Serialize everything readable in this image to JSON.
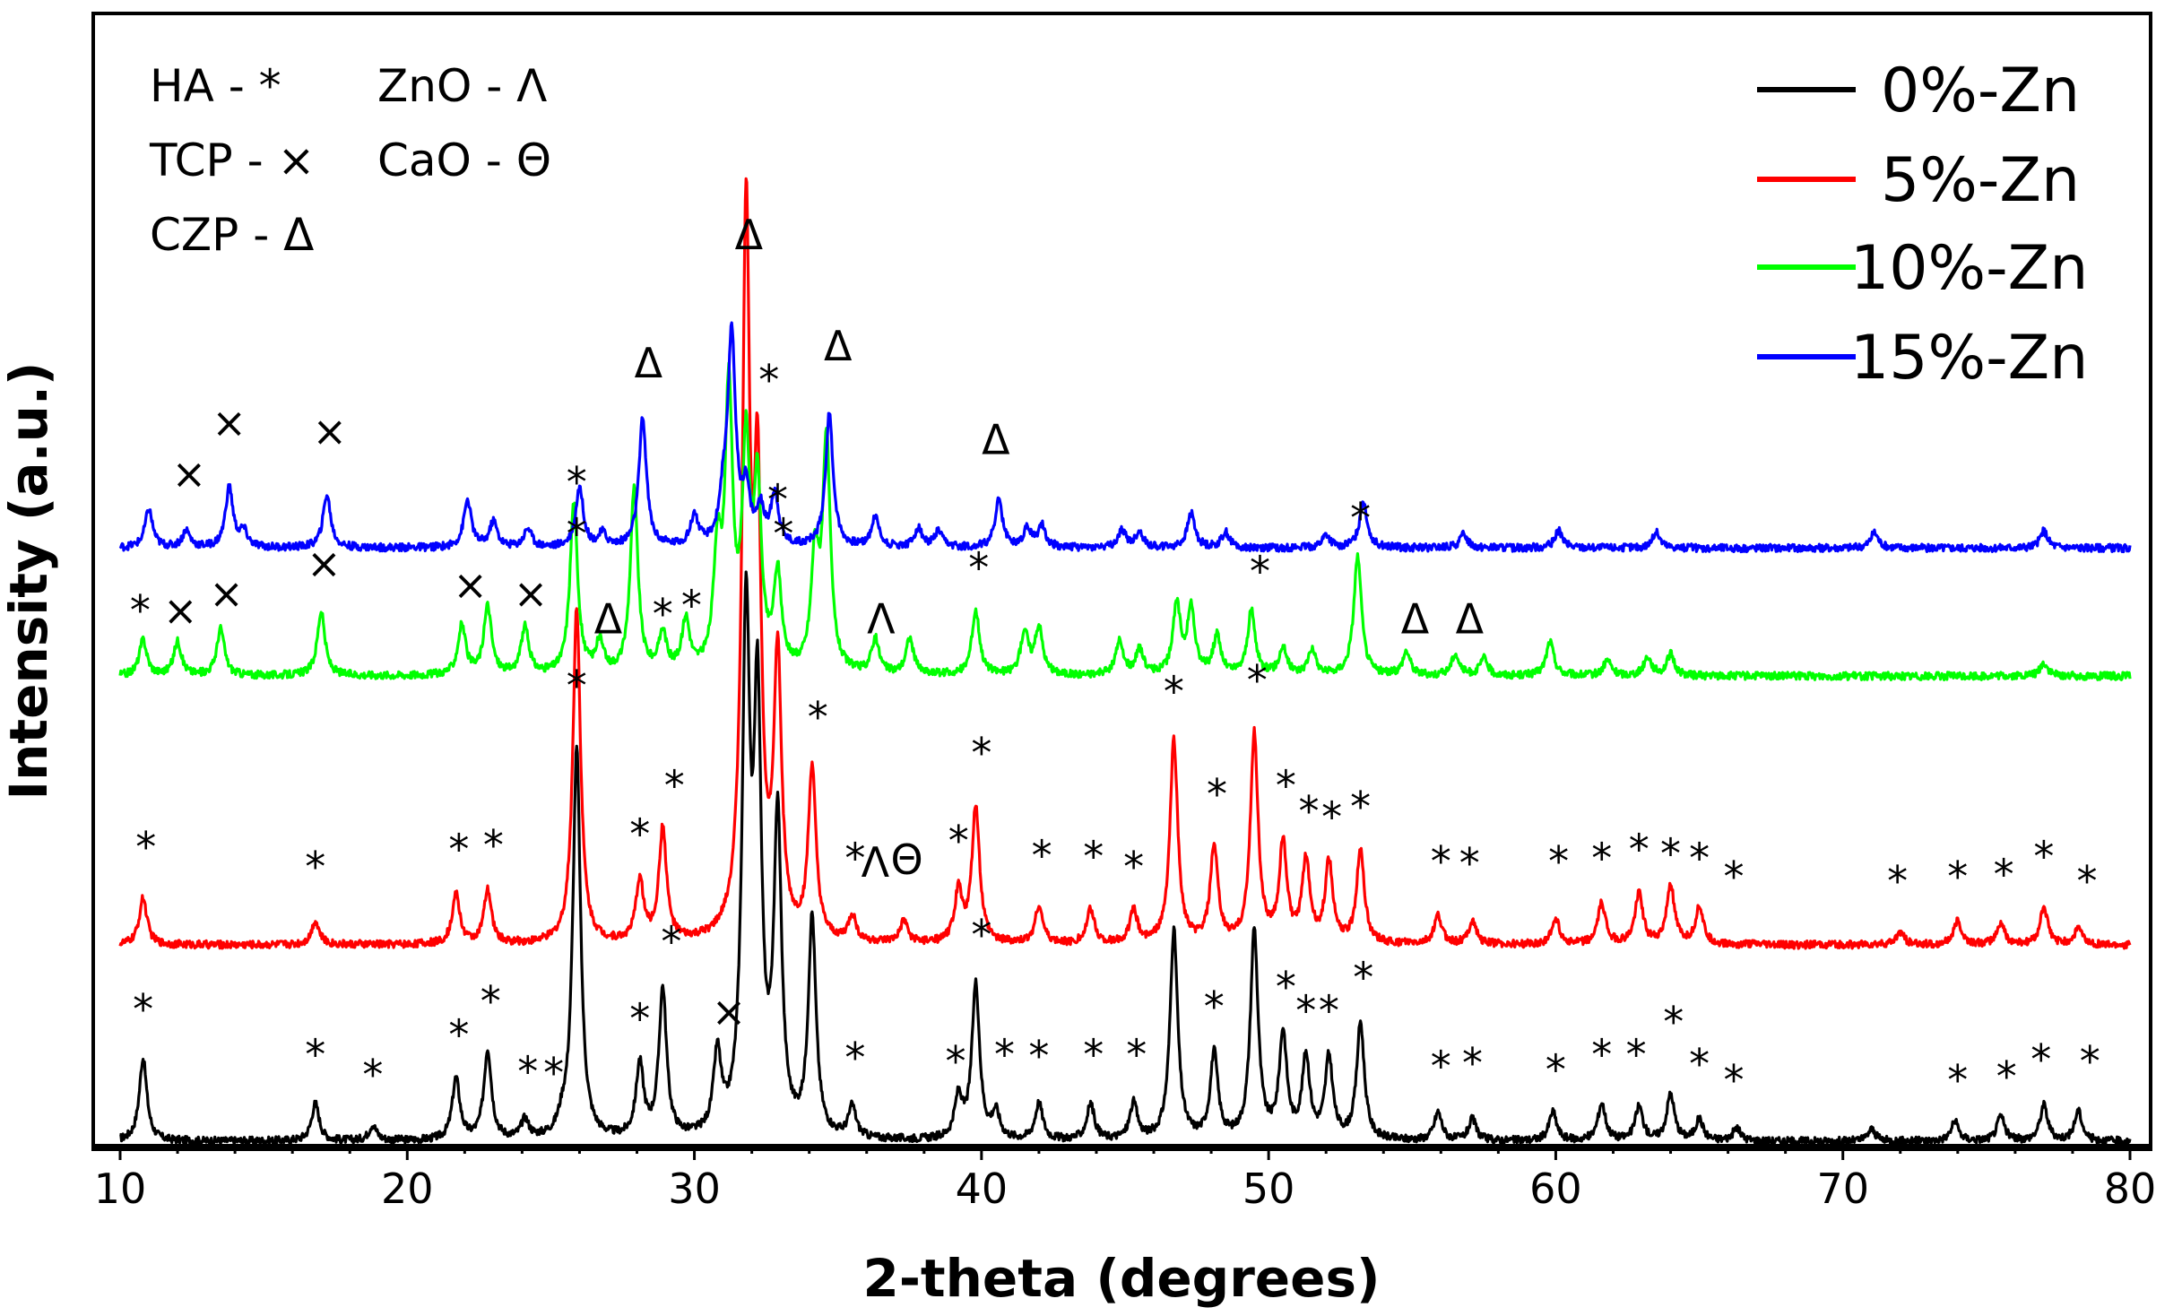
{
  "chart_data": {
    "type": "line",
    "title": "",
    "xlabel": "2-theta (degrees)",
    "ylabel": "Intensity (a.u.)",
    "xlim": [
      10,
      80
    ],
    "ylim": [
      0,
      1300
    ],
    "x_ticks": [
      10,
      20,
      30,
      40,
      50,
      60,
      70,
      80
    ],
    "grid": false,
    "legend_position": "top-right",
    "phase_key": [
      {
        "text": "HA - *"
      },
      {
        "text": "TCP - ×"
      },
      {
        "text": "CZP - Δ"
      },
      {
        "text": "ZnO - Λ"
      },
      {
        "text": "CaO - Θ"
      }
    ],
    "series": [
      {
        "name": "0%-Zn",
        "color": "#000000",
        "baseline": 5,
        "peaks": [
          [
            10.8,
            97
          ],
          [
            16.8,
            44
          ],
          [
            18.8,
            18
          ],
          [
            21.7,
            72
          ],
          [
            22.8,
            105
          ],
          [
            24.1,
            22
          ],
          [
            25.4,
            15
          ],
          [
            25.9,
            458
          ],
          [
            28.1,
            85
          ],
          [
            28.9,
            174
          ],
          [
            30.8,
            92
          ],
          [
            31.8,
            590
          ],
          [
            32.2,
            480
          ],
          [
            32.9,
            365
          ],
          [
            34.1,
            255
          ],
          [
            35.5,
            36
          ],
          [
            39.2,
            48
          ],
          [
            39.8,
            181
          ],
          [
            40.5,
            30
          ],
          [
            42.0,
            43
          ],
          [
            43.8,
            42
          ],
          [
            45.3,
            42
          ],
          [
            46.7,
            245
          ],
          [
            48.1,
            100
          ],
          [
            49.5,
            245
          ],
          [
            50.5,
            122
          ],
          [
            51.3,
            95
          ],
          [
            52.1,
            95
          ],
          [
            53.2,
            137
          ],
          [
            55.9,
            33
          ],
          [
            57.1,
            25
          ],
          [
            59.9,
            34
          ],
          [
            61.6,
            44
          ],
          [
            62.9,
            40
          ],
          [
            64.0,
            55
          ],
          [
            65.0,
            25
          ],
          [
            66.3,
            15
          ],
          [
            71.0,
            14
          ],
          [
            73.9,
            23
          ],
          [
            75.5,
            29
          ],
          [
            77.0,
            42
          ],
          [
            78.2,
            35
          ]
        ],
        "markers": [
          [
            "*",
            10.8,
            143
          ],
          [
            "*",
            16.8,
            90
          ],
          [
            "*",
            18.8,
            66
          ],
          [
            "*",
            21.8,
            113
          ],
          [
            "*",
            22.9,
            152
          ],
          [
            "*",
            24.2,
            70
          ],
          [
            "*",
            25.1,
            68
          ],
          [
            "*",
            25.9,
            522
          ],
          [
            "*",
            28.1,
            132
          ],
          [
            "*",
            29.2,
            222
          ],
          [
            "×",
            31.2,
            140
          ],
          [
            "*",
            35.6,
            86
          ],
          [
            "*",
            39.1,
            82
          ],
          [
            "*",
            40.0,
            230
          ],
          [
            "*",
            40.8,
            90
          ],
          [
            "*",
            42.0,
            88
          ],
          [
            "*",
            43.9,
            90
          ],
          [
            "*",
            45.4,
            90
          ],
          [
            "*",
            48.1,
            146
          ],
          [
            "*",
            50.6,
            169
          ],
          [
            "*",
            51.3,
            141
          ],
          [
            "*",
            52.1,
            141
          ],
          [
            "*",
            53.3,
            180
          ],
          [
            "*",
            56.0,
            76
          ],
          [
            "*",
            57.1,
            80
          ],
          [
            "*",
            60.0,
            72
          ],
          [
            "*",
            61.6,
            90
          ],
          [
            "*",
            62.8,
            90
          ],
          [
            "*",
            64.1,
            128
          ],
          [
            "*",
            65.0,
            79
          ],
          [
            "*",
            66.2,
            60
          ],
          [
            "*",
            74.0,
            60
          ],
          [
            "*",
            75.7,
            64
          ],
          [
            "*",
            76.9,
            84
          ],
          [
            "*",
            78.6,
            82
          ]
        ]
      },
      {
        "name": "5%-Zn",
        "color": "#ff0000",
        "baseline": 235,
        "peaks": [
          [
            10.8,
            55
          ],
          [
            16.8,
            28
          ],
          [
            21.7,
            58
          ],
          [
            22.8,
            62
          ],
          [
            25.9,
            395
          ],
          [
            28.1,
            72
          ],
          [
            28.9,
            132
          ],
          [
            31.8,
            825
          ],
          [
            32.2,
            490
          ],
          [
            32.9,
            320
          ],
          [
            34.1,
            200
          ],
          [
            35.5,
            30
          ],
          [
            37.3,
            25
          ],
          [
            39.2,
            60
          ],
          [
            39.8,
            159
          ],
          [
            42.0,
            45
          ],
          [
            43.8,
            40
          ],
          [
            45.3,
            38
          ],
          [
            46.7,
            238
          ],
          [
            48.1,
            112
          ],
          [
            49.5,
            245
          ],
          [
            50.5,
            115
          ],
          [
            51.3,
            95
          ],
          [
            52.1,
            94
          ],
          [
            53.2,
            110
          ],
          [
            55.9,
            33
          ],
          [
            57.1,
            28
          ],
          [
            60.0,
            30
          ],
          [
            61.6,
            48
          ],
          [
            62.9,
            60
          ],
          [
            64.0,
            70
          ],
          [
            65.0,
            45
          ],
          [
            72.0,
            15
          ],
          [
            74.0,
            28
          ],
          [
            75.5,
            25
          ],
          [
            77.0,
            44
          ],
          [
            78.2,
            20
          ]
        ],
        "markers": [
          [
            "*",
            10.9,
            333
          ],
          [
            "*",
            16.8,
            310
          ],
          [
            "*",
            21.8,
            330
          ],
          [
            "*",
            23.0,
            335
          ],
          [
            "*",
            25.9,
            700
          ],
          [
            "*",
            28.1,
            348
          ],
          [
            "*",
            29.3,
            405
          ],
          [
            "*",
            32.9,
            740
          ],
          [
            "*",
            34.3,
            485
          ],
          [
            "*",
            35.6,
            320
          ],
          [
            "Λ",
            36.3,
            315
          ],
          [
            "Θ",
            37.4,
            318
          ],
          [
            "*",
            39.2,
            340
          ],
          [
            "*",
            40.0,
            443
          ],
          [
            "*",
            42.1,
            323
          ],
          [
            "*",
            43.9,
            322
          ],
          [
            "*",
            45.3,
            310
          ],
          [
            "*",
            46.7,
            515
          ],
          [
            "*",
            48.2,
            395
          ],
          [
            "*",
            49.6,
            528
          ],
          [
            "*",
            50.6,
            405
          ],
          [
            "*",
            51.4,
            375
          ],
          [
            "*",
            52.2,
            368
          ],
          [
            "*",
            53.2,
            380
          ],
          [
            "*",
            56.0,
            316
          ],
          [
            "*",
            57.0,
            314
          ],
          [
            "*",
            60.1,
            316
          ],
          [
            "*",
            61.6,
            320
          ],
          [
            "*",
            62.9,
            330
          ],
          [
            "*",
            64.0,
            325
          ],
          [
            "*",
            65.0,
            320
          ],
          [
            "*",
            66.2,
            298
          ],
          [
            "*",
            71.9,
            293
          ],
          [
            "*",
            74.0,
            298
          ],
          [
            "*",
            75.6,
            301
          ],
          [
            "*",
            77.0,
            322
          ],
          [
            "*",
            78.5,
            293
          ]
        ]
      },
      {
        "name": "10%-Zn",
        "color": "#00ff00",
        "baseline": 550,
        "peaks": [
          [
            10.8,
            42
          ],
          [
            12.0,
            40
          ],
          [
            13.5,
            55
          ],
          [
            17.0,
            75
          ],
          [
            21.9,
            58
          ],
          [
            22.8,
            80
          ],
          [
            24.1,
            55
          ],
          [
            25.8,
            200
          ],
          [
            26.7,
            35
          ],
          [
            27.9,
            215
          ],
          [
            28.9,
            45
          ],
          [
            29.7,
            60
          ],
          [
            30.8,
            130
          ],
          [
            31.2,
            320
          ],
          [
            31.8,
            250
          ],
          [
            32.2,
            205
          ],
          [
            32.9,
            110
          ],
          [
            34.2,
            130
          ],
          [
            34.6,
            270
          ],
          [
            36.3,
            40
          ],
          [
            37.5,
            42
          ],
          [
            39.8,
            75
          ],
          [
            41.5,
            50
          ],
          [
            42.0,
            55
          ],
          [
            44.8,
            38
          ],
          [
            45.5,
            30
          ],
          [
            46.8,
            80
          ],
          [
            47.3,
            75
          ],
          [
            48.2,
            45
          ],
          [
            49.4,
            75
          ],
          [
            50.5,
            32
          ],
          [
            51.5,
            30
          ],
          [
            53.1,
            140
          ],
          [
            54.8,
            28
          ],
          [
            56.5,
            25
          ],
          [
            57.5,
            20
          ],
          [
            59.8,
            40
          ],
          [
            61.8,
            18
          ],
          [
            63.2,
            22
          ],
          [
            64.0,
            25
          ],
          [
            77.0,
            15
          ]
        ],
        "markers": [
          [
            "*",
            10.7,
            610
          ],
          [
            "×",
            12.1,
            610
          ],
          [
            "×",
            13.7,
            630
          ],
          [
            "×",
            17.1,
            665
          ],
          [
            "×",
            22.2,
            640
          ],
          [
            "×",
            24.3,
            630
          ],
          [
            "*",
            25.9,
            760
          ],
          [
            "Δ",
            27.0,
            600
          ],
          [
            "*",
            28.9,
            606
          ],
          [
            "*",
            29.9,
            616
          ],
          [
            "*",
            33.1,
            700
          ],
          [
            "Λ",
            36.5,
            600
          ],
          [
            "*",
            39.9,
            660
          ],
          [
            "*",
            49.7,
            656
          ],
          [
            "*",
            53.2,
            718
          ],
          [
            "Δ",
            55.1,
            600
          ],
          [
            "Δ",
            57.0,
            600
          ]
        ]
      },
      {
        "name": "15%-Zn",
        "color": "#0000ff",
        "baseline": 700,
        "peaks": [
          [
            11.0,
            45
          ],
          [
            12.3,
            20
          ],
          [
            13.8,
            70
          ],
          [
            14.3,
            18
          ],
          [
            17.2,
            62
          ],
          [
            22.1,
            55
          ],
          [
            23.0,
            30
          ],
          [
            24.2,
            22
          ],
          [
            26.0,
            70
          ],
          [
            26.8,
            15
          ],
          [
            28.2,
            150
          ],
          [
            30.0,
            35
          ],
          [
            31.0,
            45
          ],
          [
            31.3,
            245
          ],
          [
            31.8,
            60
          ],
          [
            32.3,
            40
          ],
          [
            32.8,
            60
          ],
          [
            34.7,
            155
          ],
          [
            36.3,
            35
          ],
          [
            37.8,
            22
          ],
          [
            38.5,
            18
          ],
          [
            40.6,
            55
          ],
          [
            41.6,
            22
          ],
          [
            42.1,
            25
          ],
          [
            44.9,
            20
          ],
          [
            45.5,
            18
          ],
          [
            47.3,
            40
          ],
          [
            48.5,
            18
          ],
          [
            52.0,
            15
          ],
          [
            53.3,
            55
          ],
          [
            56.8,
            16
          ],
          [
            60.1,
            20
          ],
          [
            63.5,
            18
          ],
          [
            71.1,
            18
          ],
          [
            77.0,
            20
          ]
        ],
        "markers": [
          [
            "×",
            12.4,
            770
          ],
          [
            "×",
            13.8,
            830
          ],
          [
            "×",
            17.3,
            820
          ],
          [
            "Δ",
            28.4,
            900
          ],
          [
            "Δ",
            31.9,
            1050
          ],
          [
            "*",
            32.6,
            880
          ],
          [
            "Δ",
            35.0,
            920
          ],
          [
            "Δ",
            40.5,
            810
          ]
        ]
      }
    ]
  }
}
